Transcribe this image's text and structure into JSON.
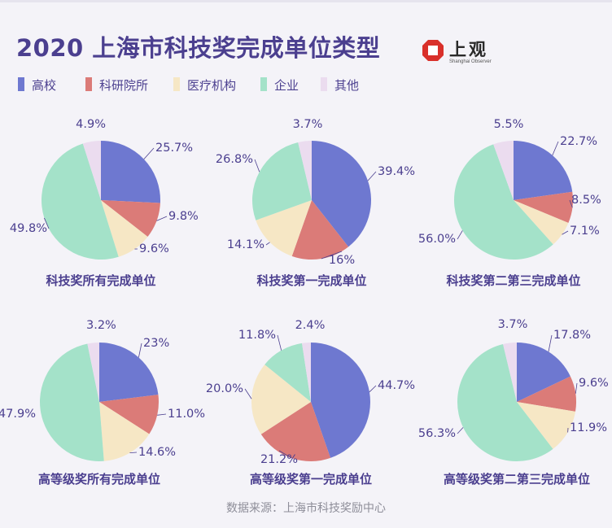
{
  "title": "2020 上海市科技奖完成单位类型",
  "brand": {
    "name": "上观",
    "sub": "Shanghai Observer"
  },
  "legend": [
    {
      "label": "高校",
      "color": "#6e78d0"
    },
    {
      "label": "科研院所",
      "color": "#db7b78"
    },
    {
      "label": "医疗机构",
      "color": "#f6e7c5"
    },
    {
      "label": "企业",
      "color": "#a4e2c9"
    },
    {
      "label": "其他",
      "color": "#ebdcef"
    }
  ],
  "source": "数据来源：上海市科技奖励中心",
  "chart_data": [
    {
      "type": "pie",
      "title": "科技奖所有完成单位",
      "categories": [
        "高校",
        "科研院所",
        "医疗机构",
        "企业",
        "其他"
      ],
      "values": [
        25.7,
        9.8,
        9.6,
        49.8,
        4.9
      ],
      "labels": [
        "25.7%",
        "9.8%",
        "9.6%",
        "49.8%",
        "4.9%"
      ]
    },
    {
      "type": "pie",
      "title": "科技奖第一完成单位",
      "categories": [
        "高校",
        "科研院所",
        "医疗机构",
        "企业",
        "其他"
      ],
      "values": [
        39.4,
        16,
        14.1,
        26.8,
        3.7
      ],
      "labels": [
        "39.4%",
        "16%",
        "14.1%",
        "26.8%",
        "3.7%"
      ]
    },
    {
      "type": "pie",
      "title": "科技奖第二第三完成单位",
      "categories": [
        "高校",
        "科研院所",
        "医疗机构",
        "企业",
        "其他"
      ],
      "values": [
        22.7,
        8.5,
        7.1,
        56.0,
        5.5
      ],
      "labels": [
        "22.7%",
        "8.5%",
        "7.1%",
        "56.0%",
        "5.5%"
      ]
    },
    {
      "type": "pie",
      "title": "高等级奖所有完成单位",
      "categories": [
        "高校",
        "科研院所",
        "医疗机构",
        "企业",
        "其他"
      ],
      "values": [
        23,
        11.0,
        14.6,
        47.9,
        3.2
      ],
      "labels": [
        "23%",
        "11.0%",
        "14.6%",
        "47.9%",
        "3.2%"
      ]
    },
    {
      "type": "pie",
      "title": "高等级奖第一完成单位",
      "categories": [
        "高校",
        "科研院所",
        "医疗机构",
        "企业",
        "其他"
      ],
      "values": [
        44.7,
        21.2,
        20.0,
        11.8,
        2.4
      ],
      "labels": [
        "44.7%",
        "21.2%",
        "20.0%",
        "11.8%",
        "2.4%"
      ]
    },
    {
      "type": "pie",
      "title": "高等级奖第二第三完成单位",
      "categories": [
        "高校",
        "科研院所",
        "医疗机构",
        "企业",
        "其他"
      ],
      "values": [
        17.8,
        9.6,
        11.9,
        56.3,
        3.7
      ],
      "labels": [
        "17.8%",
        "9.6%",
        "11.9%",
        "56.3%",
        "3.7%"
      ]
    }
  ]
}
